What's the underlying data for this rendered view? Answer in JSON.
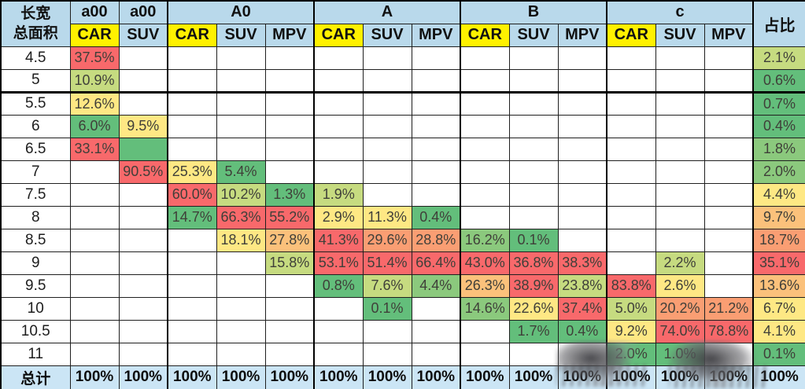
{
  "chart_data": {
    "type": "table",
    "corner": {
      "line1": "长宽",
      "line2": "总面积"
    },
    "col_groups": [
      {
        "label": "a00",
        "subs": [
          "CAR"
        ]
      },
      {
        "label": "a00",
        "subs": [
          "SUV"
        ]
      },
      {
        "label": "A0",
        "subs": [
          "CAR",
          "SUV",
          "MPV"
        ]
      },
      {
        "label": "A",
        "subs": [
          "CAR",
          "SUV",
          "MPV"
        ]
      },
      {
        "label": "B",
        "subs": [
          "CAR",
          "SUV",
          "MPV"
        ]
      },
      {
        "label": "c",
        "subs": [
          "CAR",
          "SUV",
          "MPV"
        ]
      }
    ],
    "share_header": "占比",
    "total_label": "总计",
    "palette": {
      "g": "#63BE7B",
      "g2": "#8BC97D",
      "ly": "#C6DB80",
      "y": "#FEE884",
      "yo": "#FBC17B",
      "o": "#FA9E73",
      "r": "#F8696B",
      "header_blue": "#B9D9EB",
      "total_blue": "#CBE5F5",
      "car_yellow": "#FFF100"
    },
    "rows": [
      {
        "label": "4.5",
        "cells": [
          [
            "37.5%",
            "r"
          ],
          null,
          null,
          null,
          null,
          null,
          null,
          null,
          null,
          null,
          null,
          null,
          null,
          null
        ],
        "share": [
          "2.1%",
          "ly"
        ]
      },
      {
        "label": "5",
        "cells": [
          [
            "10.9%",
            "ly"
          ],
          null,
          null,
          null,
          null,
          null,
          null,
          null,
          null,
          null,
          null,
          null,
          null,
          null
        ],
        "share": [
          "0.6%",
          "g"
        ]
      },
      {
        "label": "5.5",
        "cells": [
          [
            "12.6%",
            "y"
          ],
          null,
          null,
          null,
          null,
          null,
          null,
          null,
          null,
          null,
          null,
          null,
          null,
          null
        ],
        "share": [
          "0.7%",
          "g"
        ]
      },
      {
        "label": "6",
        "cells": [
          [
            "6.0%",
            "g"
          ],
          [
            "9.5%",
            "y"
          ],
          null,
          null,
          null,
          null,
          null,
          null,
          null,
          null,
          null,
          null,
          null,
          null
        ],
        "share": [
          "0.4%",
          "g"
        ]
      },
      {
        "label": "6.5",
        "cells": [
          [
            "33.1%",
            "r"
          ],
          [
            "",
            "g"
          ],
          null,
          null,
          null,
          null,
          null,
          null,
          null,
          null,
          null,
          null,
          null,
          null
        ],
        "share": [
          "1.8%",
          "g2"
        ]
      },
      {
        "label": "7",
        "cells": [
          null,
          [
            "90.5%",
            "r"
          ],
          [
            "25.3%",
            "y"
          ],
          [
            "5.4%",
            "g"
          ],
          null,
          null,
          null,
          null,
          null,
          null,
          null,
          null,
          null,
          null
        ],
        "share": [
          "2.0%",
          "g2"
        ]
      },
      {
        "label": "7.5",
        "cells": [
          null,
          null,
          [
            "60.0%",
            "r"
          ],
          [
            "10.2%",
            "ly"
          ],
          [
            "1.3%",
            "g"
          ],
          [
            "1.9%",
            "ly"
          ],
          null,
          null,
          null,
          null,
          null,
          null,
          null,
          null
        ],
        "share": [
          "4.4%",
          "y"
        ]
      },
      {
        "label": "8",
        "cells": [
          null,
          null,
          [
            "14.7%",
            "g"
          ],
          [
            "66.3%",
            "r"
          ],
          [
            "55.2%",
            "r"
          ],
          [
            "2.9%",
            "y"
          ],
          [
            "11.3%",
            "y"
          ],
          [
            "0.4%",
            "g"
          ],
          null,
          null,
          null,
          null,
          null,
          null
        ],
        "share": [
          "9.7%",
          "yo"
        ]
      },
      {
        "label": "8.5",
        "cells": [
          null,
          null,
          null,
          [
            "18.1%",
            "y"
          ],
          [
            "27.8%",
            "yo"
          ],
          [
            "41.3%",
            "r"
          ],
          [
            "29.6%",
            "o"
          ],
          [
            "28.8%",
            "o"
          ],
          [
            "16.2%",
            "g2"
          ],
          [
            "0.1%",
            "g"
          ],
          null,
          null,
          null,
          null
        ],
        "share": [
          "18.7%",
          "o"
        ]
      },
      {
        "label": "9",
        "cells": [
          null,
          null,
          null,
          null,
          [
            "15.8%",
            "ly"
          ],
          [
            "53.1%",
            "r"
          ],
          [
            "51.4%",
            "r"
          ],
          [
            "66.4%",
            "r"
          ],
          [
            "43.0%",
            "r"
          ],
          [
            "36.8%",
            "r"
          ],
          [
            "38.3%",
            "r"
          ],
          null,
          [
            "2.2%",
            "ly"
          ],
          null
        ],
        "share": [
          "35.1%",
          "r"
        ]
      },
      {
        "label": "9.5",
        "cells": [
          null,
          null,
          null,
          null,
          null,
          [
            "0.8%",
            "g"
          ],
          [
            "7.6%",
            "ly"
          ],
          [
            "4.4%",
            "g2"
          ],
          [
            "26.3%",
            "yo"
          ],
          [
            "38.9%",
            "r"
          ],
          [
            "23.8%",
            "ly"
          ],
          [
            "83.8%",
            "r"
          ],
          [
            "2.6%",
            "y"
          ],
          null
        ],
        "share": [
          "13.6%",
          "yo"
        ]
      },
      {
        "label": "10",
        "cells": [
          null,
          null,
          null,
          null,
          null,
          null,
          [
            "0.1%",
            "g"
          ],
          null,
          [
            "14.6%",
            "g2"
          ],
          [
            "22.6%",
            "y"
          ],
          [
            "37.4%",
            "r"
          ],
          [
            "5.0%",
            "ly"
          ],
          [
            "20.2%",
            "o"
          ],
          [
            "21.2%",
            "o"
          ]
        ],
        "share": [
          "6.7%",
          "y"
        ]
      },
      {
        "label": "10.5",
        "cells": [
          null,
          null,
          null,
          null,
          null,
          null,
          null,
          null,
          null,
          [
            "1.7%",
            "g"
          ],
          [
            "0.4%",
            "g"
          ],
          [
            "9.2%",
            "y"
          ],
          [
            "74.0%",
            "r"
          ],
          [
            "78.8%",
            "r"
          ]
        ],
        "share": [
          "4.1%",
          "y"
        ]
      },
      {
        "label": "11",
        "cells": [
          null,
          null,
          null,
          null,
          null,
          null,
          null,
          null,
          null,
          null,
          null,
          [
            "2.0%",
            "g"
          ],
          [
            "1.0%",
            "g"
          ],
          null
        ],
        "share": [
          "0.1%",
          "g"
        ]
      }
    ],
    "total_values": [
      "100%",
      "100%",
      "100%",
      "100%",
      "100%",
      "100%",
      "100%",
      "100%",
      "100%",
      "100%",
      "100%",
      "100%",
      "100%",
      "100%",
      "100%"
    ]
  }
}
